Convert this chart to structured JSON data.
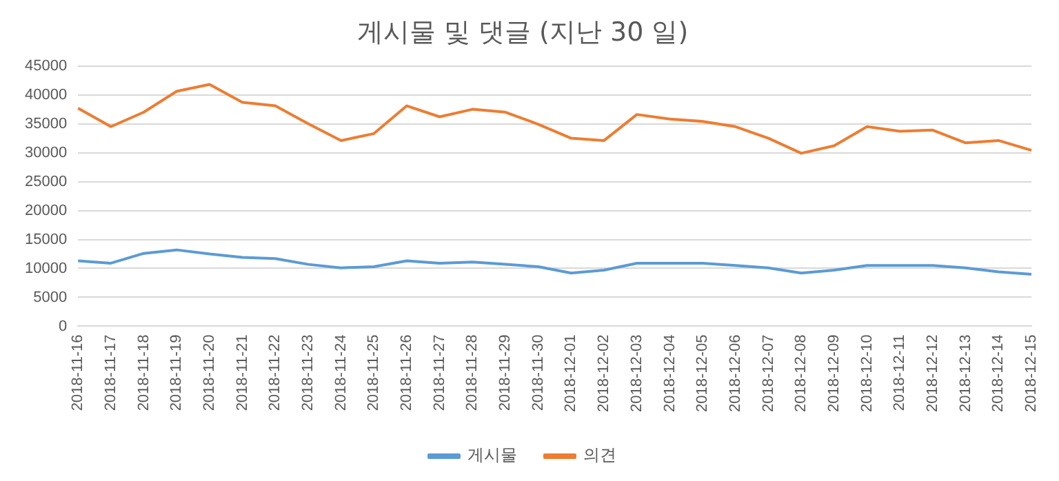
{
  "chart_data": {
    "type": "line",
    "title": "게시물 및 댓글 (지난 30 일)",
    "categories": [
      "2018-11-16",
      "2018-11-17",
      "2018-11-18",
      "2018-11-19",
      "2018-11-20",
      "2018-11-21",
      "2018-11-22",
      "2018-11-23",
      "2018-11-24",
      "2018-11-25",
      "2018-11-26",
      "2018-11-27",
      "2018-11-28",
      "2018-11-29",
      "2018-11-30",
      "2018-12-01",
      "2018-12-02",
      "2018-12-03",
      "2018-12-04",
      "2018-12-05",
      "2018-12-06",
      "2018-12-07",
      "2018-12-08",
      "2018-12-09",
      "2018-12-10",
      "2018-12-11",
      "2018-12-12",
      "2018-12-13",
      "2018-12-14",
      "2018-12-15"
    ],
    "series": [
      {
        "name": "게시물",
        "color": "#5b9bd5",
        "values": [
          11300,
          10900,
          12600,
          13200,
          12500,
          11900,
          11700,
          10700,
          10100,
          10300,
          11300,
          10900,
          11100,
          10700,
          10300,
          9200,
          9700,
          10900,
          10900,
          10900,
          10500,
          10100,
          9200,
          9700,
          10500,
          10500,
          10500,
          10100,
          9400,
          9000
        ]
      },
      {
        "name": "의견",
        "color": "#ed7d31",
        "values": [
          37700,
          34500,
          37000,
          40600,
          41800,
          38700,
          38100,
          35000,
          32100,
          33300,
          38100,
          36200,
          37500,
          37000,
          34900,
          32500,
          32100,
          36600,
          35800,
          35400,
          34500,
          32500,
          29900,
          31200,
          34500,
          33700,
          33900,
          31700,
          32100,
          30400
        ]
      }
    ],
    "ylim": [
      0,
      45000
    ],
    "yticks": [
      0,
      5000,
      10000,
      15000,
      20000,
      25000,
      30000,
      35000,
      40000,
      45000
    ],
    "grid": "y",
    "legend": "bottom",
    "marker": "none",
    "line_style": "solid"
  }
}
